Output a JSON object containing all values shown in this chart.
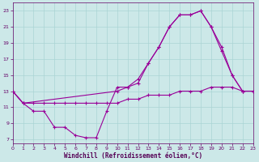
{
  "bg_color": "#cce8e8",
  "grid_color": "#aad4d4",
  "line_color": "#990099",
  "xlabel": "Windchill (Refroidissement éolien,°C)",
  "x_ticks": [
    0,
    1,
    2,
    3,
    4,
    5,
    6,
    7,
    8,
    9,
    10,
    11,
    12,
    13,
    14,
    15,
    16,
    17,
    18,
    19,
    20,
    21,
    22,
    23
  ],
  "y_ticks": [
    7,
    9,
    11,
    13,
    15,
    17,
    19,
    21,
    23
  ],
  "xlim": [
    0,
    23
  ],
  "ylim": [
    6.5,
    24
  ],
  "line1_x": [
    0,
    1,
    2,
    3,
    4,
    5,
    6,
    7,
    8,
    9,
    10,
    11,
    12,
    13,
    14,
    15,
    16,
    17,
    18,
    19,
    20,
    21,
    22,
    23
  ],
  "line1_y": [
    13,
    11.5,
    10.5,
    10.5,
    8.5,
    8.5,
    7.5,
    7.2,
    7.2,
    10.5,
    13.5,
    13.5,
    14,
    16.5,
    18.5,
    21,
    22.5,
    22.5,
    23,
    21,
    18,
    15,
    13,
    13
  ],
  "line2_x": [
    0,
    1,
    10,
    11,
    12,
    13,
    14,
    15,
    16,
    17,
    18,
    19,
    20,
    21,
    22,
    23
  ],
  "line2_y": [
    13,
    11.5,
    13,
    13.5,
    14.5,
    16.5,
    18.5,
    21,
    22.5,
    22.5,
    23,
    21,
    18.5,
    15,
    13,
    13
  ],
  "line3_x": [
    0,
    1,
    2,
    3,
    4,
    5,
    6,
    7,
    8,
    9,
    10,
    11,
    12,
    13,
    14,
    15,
    16,
    17,
    18,
    19,
    20,
    21,
    22,
    23
  ],
  "line3_y": [
    13,
    11.5,
    11.5,
    11.5,
    11.5,
    11.5,
    11.5,
    11.5,
    11.5,
    11.5,
    11.5,
    12,
    12,
    12.5,
    12.5,
    12.5,
    13,
    13,
    13,
    13.5,
    13.5,
    13.5,
    13,
    13
  ]
}
